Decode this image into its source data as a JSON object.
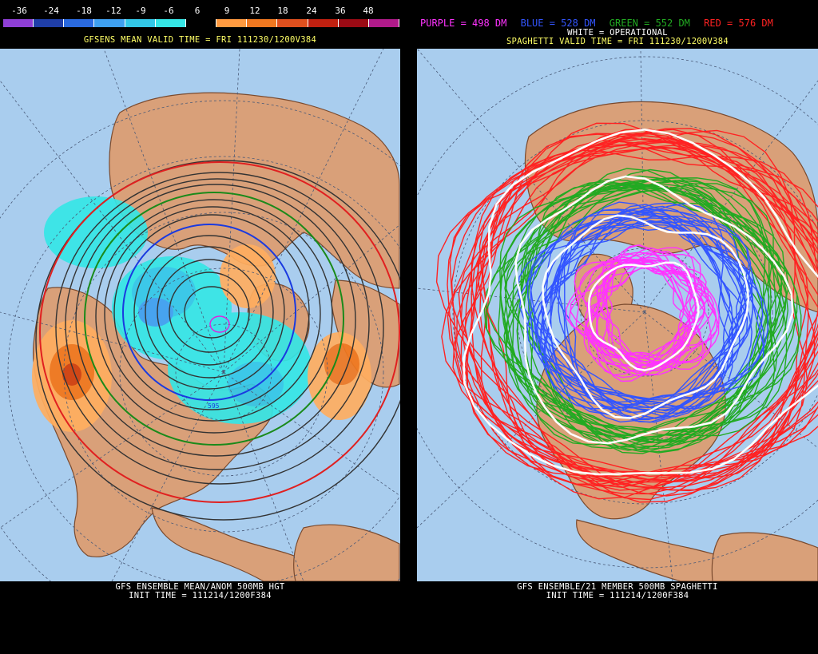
{
  "left_panel": {
    "colorbar": {
      "labels": [
        "-36",
        "-24",
        "-18",
        "-12",
        "-9",
        "-6",
        "6",
        "9",
        "12",
        "18",
        "24",
        "36",
        "48"
      ],
      "colors": [
        "#8f3fd6",
        "#1f3ea8",
        "#2a6ae0",
        "#3fa0f0",
        "#33c8e8",
        "#35e6e6",
        "#000000",
        "#ff9a40",
        "#f07820",
        "#e0501e",
        "#c02010",
        "#9a0a14",
        "#b01a8a"
      ]
    },
    "title": "GFSENS MEAN VALID TIME = FRI 111230/1200V384",
    "footer_line1": "GFS ENSEMBLE MEAN/ANOM 500MB HGT",
    "footer_line2": "INIT TIME = 111214/1200F384",
    "label_595": "595"
  },
  "right_panel": {
    "legend": {
      "purple": "PURPLE = 498 DM",
      "blue": "BLUE = 528 DM",
      "green": "GREEN = 552 DM",
      "red": "RED = 576 DM",
      "white": "WHITE = OPERATIONAL"
    },
    "legend_colors": {
      "purple": "#ff33ff",
      "blue": "#3355ff",
      "green": "#22aa22",
      "red": "#ff2222",
      "white": "#ffffff"
    },
    "title": "SPAGHETTI VALID TIME = FRI 111230/1200V384",
    "footer_line1": "GFS ENSEMBLE/21 MEMBER 500MB SPAGHETTI",
    "footer_line2": "INIT TIME = 111214/1200F384"
  },
  "colors": {
    "ocean": "#a9cdee",
    "land": "#d9a079",
    "border": "#7a4a2e",
    "grid": "#4a5a78",
    "title_yellow": "#ffff66"
  }
}
